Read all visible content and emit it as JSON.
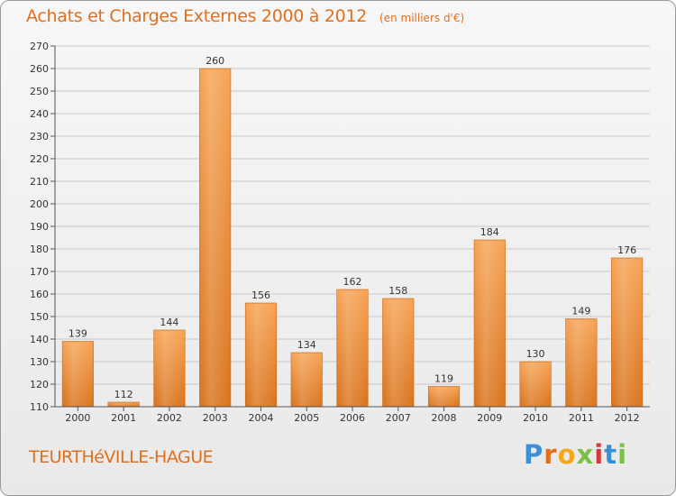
{
  "title": "Achats et Charges Externes 2000 à 2012",
  "subtitle": "(en milliers d'€)",
  "footer": {
    "place": "TEURTHéVILLE-HAGUE"
  },
  "logo": {
    "letters": [
      "P",
      "r",
      "o",
      "x",
      "i",
      "t",
      "i"
    ],
    "colors": [
      "#3a8fd8",
      "#e0701e",
      "#f2a81c",
      "#7cc043",
      "#d43a3a",
      "#3a8fd8",
      "#7cc043"
    ]
  },
  "colors": {
    "accent": "#e0701e",
    "bar_top": "#f6a456",
    "bar_bottom": "#d9741e",
    "grid": "#c8c8c8"
  },
  "chart_data": {
    "type": "bar",
    "title": "Achats et Charges Externes 2000 à 2012",
    "subtitle": "(en milliers d'€)",
    "categories": [
      "2000",
      "2001",
      "2002",
      "2003",
      "2004",
      "2005",
      "2006",
      "2007",
      "2008",
      "2009",
      "2010",
      "2011",
      "2012"
    ],
    "values": [
      139,
      112,
      144,
      260,
      156,
      134,
      162,
      158,
      119,
      184,
      130,
      149,
      176
    ],
    "ylim": [
      110,
      270
    ],
    "yticks": [
      110,
      120,
      130,
      140,
      150,
      160,
      170,
      180,
      190,
      200,
      210,
      220,
      230,
      240,
      250,
      260,
      270
    ],
    "grid": true,
    "data_labels": true
  }
}
